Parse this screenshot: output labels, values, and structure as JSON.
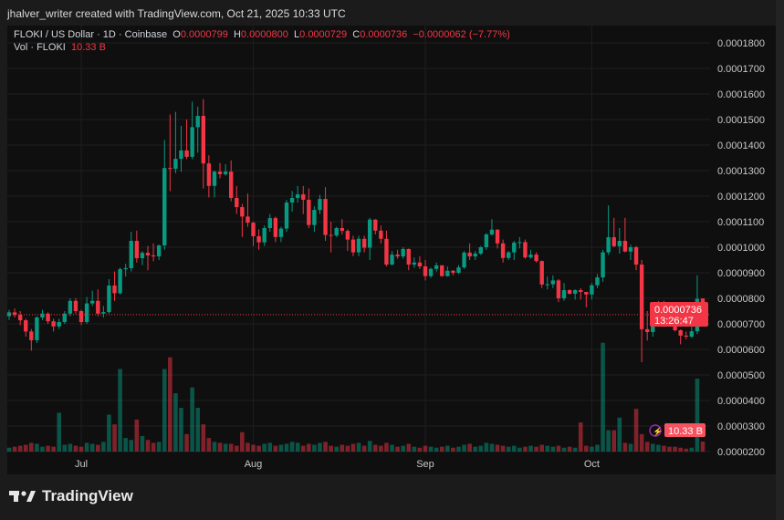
{
  "credit": "jhalver_writer created with TradingView.com, Oct 21, 2025 10:33 UTC",
  "legend": {
    "symbol": "FLOKI / US Dollar · 1D · Coinbase",
    "o_label": "O",
    "o": "0.0000799",
    "h_label": "H",
    "h": "0.0000800",
    "l_label": "L",
    "l": "0.0000729",
    "c_label": "C",
    "c": "0.0000736",
    "change": "−0.0000062 (−7.77%)",
    "vol_label": "Vol · FLOKI",
    "vol": "10.33 B"
  },
  "price_tag": {
    "price": "0.0000736",
    "countdown": "13:26:47"
  },
  "volume_tag": "10.33 B",
  "logo": "TradingView",
  "colors": {
    "up": "#089981",
    "down": "#f23645"
  },
  "chart_data": {
    "type": "candlestick",
    "price_unit": "1e-6 USD",
    "ylim": [
      20,
      180
    ],
    "y_ticks": [
      "0.0001800",
      "0.0001700",
      "0.0001600",
      "0.0001500",
      "0.0001400",
      "0.0001300",
      "0.0001200",
      "0.0001100",
      "0.0001000",
      "0.0000900",
      "0.0000800",
      "0.0000700",
      "0.0000600",
      "0.0000500",
      "0.0000400",
      "0.0000300",
      "0.0000200"
    ],
    "x_ticks": [
      {
        "label": "Jul",
        "index": 13
      },
      {
        "label": "Aug",
        "index": 44
      },
      {
        "label": "Sep",
        "index": 75
      },
      {
        "label": "Oct",
        "index": 105
      }
    ],
    "grid": true,
    "ohlc": [
      [
        73,
        75.5,
        71.5,
        74.5
      ],
      [
        74.5,
        76,
        72.5,
        73.5
      ],
      [
        73.5,
        75,
        69.5,
        71.4
      ],
      [
        71.4,
        72,
        65,
        67
      ],
      [
        67,
        68,
        59.5,
        63.6
      ],
      [
        63.6,
        73,
        62.5,
        72.5
      ],
      [
        72.5,
        75.5,
        71.5,
        74
      ],
      [
        74,
        74.5,
        70,
        71
      ],
      [
        71,
        72,
        67,
        69
      ],
      [
        69,
        72,
        68,
        70.7
      ],
      [
        70.7,
        75,
        70,
        74
      ],
      [
        74,
        80,
        73,
        79
      ],
      [
        79,
        80,
        74,
        75
      ],
      [
        75,
        75.5,
        69.5,
        70.7
      ],
      [
        70.7,
        80.5,
        70,
        78
      ],
      [
        78,
        83,
        77,
        79
      ],
      [
        79,
        83.5,
        73,
        74
      ],
      [
        74,
        77,
        72.5,
        74.6
      ],
      [
        74.6,
        87.5,
        74,
        85
      ],
      [
        85,
        90.5,
        79,
        82
      ],
      [
        82,
        92,
        81.5,
        91.4
      ],
      [
        91.4,
        93.5,
        88.5,
        91.8
      ],
      [
        91.8,
        106,
        90.5,
        102.5
      ],
      [
        102.5,
        106.5,
        94,
        95.7
      ],
      [
        95.7,
        98.5,
        93,
        97.8
      ],
      [
        97.8,
        100.5,
        91,
        96.8
      ],
      [
        96.8,
        101.5,
        94.5,
        96.4
      ],
      [
        96.4,
        101,
        95,
        100.7
      ],
      [
        100.7,
        142,
        99,
        131
      ],
      [
        131,
        152,
        122,
        130.7
      ],
      [
        130.7,
        153,
        129,
        134.6
      ],
      [
        134.6,
        147.5,
        129.5,
        137.9
      ],
      [
        137.9,
        150,
        134.5,
        135.4
      ],
      [
        135.4,
        157,
        134.5,
        147
      ],
      [
        147,
        155,
        137,
        151.4
      ],
      [
        151.4,
        158,
        123,
        132.8
      ],
      [
        132.8,
        136,
        119.5,
        124
      ],
      [
        124,
        130,
        119.5,
        129.6
      ],
      [
        129.6,
        133,
        127,
        128.6
      ],
      [
        128.6,
        132.5,
        128,
        129.6
      ],
      [
        129.6,
        134,
        118,
        119.3
      ],
      [
        119.3,
        124,
        113,
        115.7
      ],
      [
        115.7,
        117,
        104,
        112
      ],
      [
        112,
        121,
        108,
        109.6
      ],
      [
        109.6,
        110,
        100.5,
        104.3
      ],
      [
        104.3,
        107,
        99,
        101.9
      ],
      [
        101.9,
        108.5,
        100.5,
        107.5
      ],
      [
        107.5,
        113,
        106,
        111.4
      ],
      [
        111.4,
        112,
        102,
        104
      ],
      [
        104,
        108,
        102,
        107.3
      ],
      [
        107.3,
        118.5,
        106,
        117.5
      ],
      [
        117.5,
        122,
        114,
        119.3
      ],
      [
        119.3,
        124,
        117.5,
        120.7
      ],
      [
        120.7,
        124,
        113,
        118.6
      ],
      [
        118.6,
        123,
        107.5,
        108.7
      ],
      [
        108.7,
        116,
        106,
        114.6
      ],
      [
        114.6,
        120.5,
        113,
        118.9
      ],
      [
        118.9,
        123.5,
        102.5,
        104.8
      ],
      [
        104.8,
        110,
        98,
        104.6
      ],
      [
        104.6,
        108,
        104,
        107.5
      ],
      [
        107.5,
        111,
        105,
        106.4
      ],
      [
        106.4,
        107,
        98.5,
        103
      ],
      [
        103,
        104.5,
        96.5,
        98
      ],
      [
        98,
        104.5,
        96.5,
        103.3
      ],
      [
        103.3,
        104.5,
        98,
        99.8
      ],
      [
        99.8,
        111.5,
        95,
        110.8
      ],
      [
        110.8,
        111,
        105,
        106.5
      ],
      [
        106.5,
        108.5,
        101.5,
        103.3
      ],
      [
        103.3,
        106.5,
        92.5,
        93.2
      ],
      [
        93.2,
        98.5,
        93,
        97.1
      ],
      [
        97.1,
        99,
        95.5,
        96.4
      ],
      [
        96.4,
        100,
        95.5,
        99.3
      ],
      [
        99.3,
        99.5,
        91,
        93.2
      ],
      [
        93.2,
        96,
        92,
        94
      ],
      [
        94,
        96.5,
        91.5,
        92.5
      ],
      [
        92.5,
        95,
        87,
        88.7
      ],
      [
        88.7,
        92,
        88,
        91.5
      ],
      [
        91.5,
        94,
        90.5,
        92.9
      ],
      [
        92.9,
        93,
        88.5,
        88.7
      ],
      [
        88.7,
        92.5,
        88.5,
        90.8
      ],
      [
        90.8,
        91,
        89,
        90
      ],
      [
        90,
        93,
        89.5,
        92.1
      ],
      [
        92.1,
        98.5,
        91.5,
        97.9
      ],
      [
        97.9,
        101.5,
        95,
        96.4
      ],
      [
        96.4,
        98.5,
        95,
        97.5
      ],
      [
        97.5,
        100.5,
        97,
        100
      ],
      [
        100,
        105.5,
        99,
        105
      ],
      [
        105,
        111,
        104.5,
        106.9
      ],
      [
        106.9,
        107,
        99.5,
        101.5
      ],
      [
        101.5,
        103,
        94,
        95.8
      ],
      [
        95.8,
        98.5,
        95,
        98
      ],
      [
        98,
        102.5,
        95,
        101.8
      ],
      [
        101.8,
        104,
        99.5,
        102
      ],
      [
        102,
        103,
        95.5,
        96
      ],
      [
        96,
        99,
        95.5,
        97.1
      ],
      [
        97.1,
        98,
        94,
        94.6
      ],
      [
        94.6,
        94.8,
        84,
        85.4
      ],
      [
        85.4,
        88.5,
        83.5,
        85.5
      ],
      [
        85.5,
        89,
        84,
        87
      ],
      [
        87,
        87.5,
        78.5,
        80
      ],
      [
        80,
        86,
        79,
        83.2
      ],
      [
        83.2,
        83.5,
        81.5,
        81.8
      ],
      [
        81.8,
        83.5,
        79.5,
        83.2
      ],
      [
        83.2,
        84,
        79.5,
        82.5
      ],
      [
        82.5,
        82.5,
        76.5,
        81.5
      ],
      [
        81.5,
        86,
        79.5,
        85.1
      ],
      [
        85.1,
        89.5,
        84,
        88.2
      ],
      [
        88.2,
        99,
        86.5,
        98
      ],
      [
        98,
        116.4,
        97,
        103.9
      ],
      [
        103.9,
        111.5,
        100,
        100.4
      ],
      [
        100.4,
        107.5,
        97.5,
        102.5
      ],
      [
        102.5,
        111.5,
        98,
        98.3
      ],
      [
        98.3,
        101,
        95,
        100
      ],
      [
        100,
        100.5,
        91,
        93.2
      ],
      [
        93.2,
        95,
        55,
        67.9
      ],
      [
        67.9,
        75,
        63.5,
        66.8
      ],
      [
        66.8,
        75.5,
        65,
        74.4
      ],
      [
        74.4,
        79,
        72.5,
        78.2
      ],
      [
        78.2,
        79,
        70.5,
        74.8
      ],
      [
        74.8,
        76,
        69.5,
        70.8
      ],
      [
        70.8,
        71.5,
        67,
        67.5
      ],
      [
        67.5,
        67.8,
        62,
        65.4
      ],
      [
        65.4,
        67,
        64,
        65
      ],
      [
        65,
        69.5,
        64.5,
        67.1
      ],
      [
        67.1,
        89,
        66,
        79.8
      ],
      [
        79.9,
        80.0,
        72.9,
        73.6
      ]
    ],
    "volume_unit": "B",
    "volume": [
      4,
      5,
      6,
      7,
      9,
      8,
      5,
      6,
      5,
      40,
      7,
      8,
      6,
      5,
      9,
      8,
      7,
      10,
      38,
      28,
      85,
      14,
      12,
      33,
      16,
      12,
      9,
      10,
      85,
      97,
      60,
      45,
      18,
      66,
      45,
      28,
      14,
      10,
      9,
      8,
      8,
      6,
      20,
      9,
      7,
      6,
      8,
      9,
      6,
      7,
      8,
      10,
      9,
      6,
      8,
      7,
      9,
      10,
      6,
      5,
      7,
      6,
      8,
      9,
      6,
      11,
      7,
      6,
      9,
      7,
      5,
      6,
      8,
      5,
      4,
      6,
      5,
      4,
      5,
      6,
      4,
      5,
      7,
      8,
      5,
      6,
      9,
      8,
      7,
      6,
      5,
      6,
      4,
      5,
      6,
      5,
      7,
      6,
      5,
      6,
      4,
      5,
      4,
      30,
      6,
      5,
      7,
      112,
      22,
      22,
      35,
      9,
      8,
      44,
      18,
      10,
      8,
      7,
      6,
      5,
      5,
      4,
      3,
      4,
      75,
      10.33
    ]
  }
}
